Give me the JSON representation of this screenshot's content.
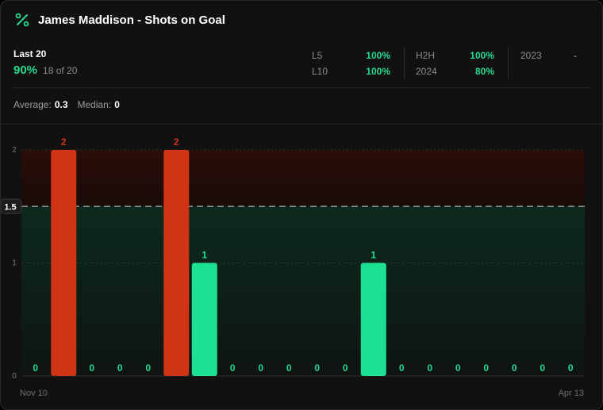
{
  "header": {
    "title": "James Maddison - Shots on Goal",
    "icon": "percent-icon"
  },
  "summary": {
    "period_label": "Last 20",
    "hit_rate": "90%",
    "hit_detail": "18 of 20"
  },
  "splits": [
    {
      "label": "L5",
      "value": "100%"
    },
    {
      "label": "L10",
      "value": "100%"
    },
    {
      "label": "H2H",
      "value": "100%"
    },
    {
      "label": "2024",
      "value": "80%"
    },
    {
      "label": "2023",
      "value": "-"
    }
  ],
  "averages": {
    "average_label": "Average:",
    "average_value": "0.3",
    "median_label": "Median:",
    "median_value": "0"
  },
  "colors": {
    "accent": "#27d88f",
    "over": "#d13414",
    "under": "#1ce092"
  },
  "chart_data": {
    "type": "bar",
    "line": 1.5,
    "line_label": "1.5",
    "ylim": [
      0,
      2
    ],
    "yticks": [
      "0",
      "1",
      "2"
    ],
    "values": [
      0,
      2,
      0,
      0,
      0,
      2,
      1,
      0,
      0,
      0,
      0,
      0,
      1,
      0,
      0,
      0,
      0,
      0,
      0,
      0
    ],
    "start_label": "Nov 10",
    "end_label": "Apr 13"
  }
}
